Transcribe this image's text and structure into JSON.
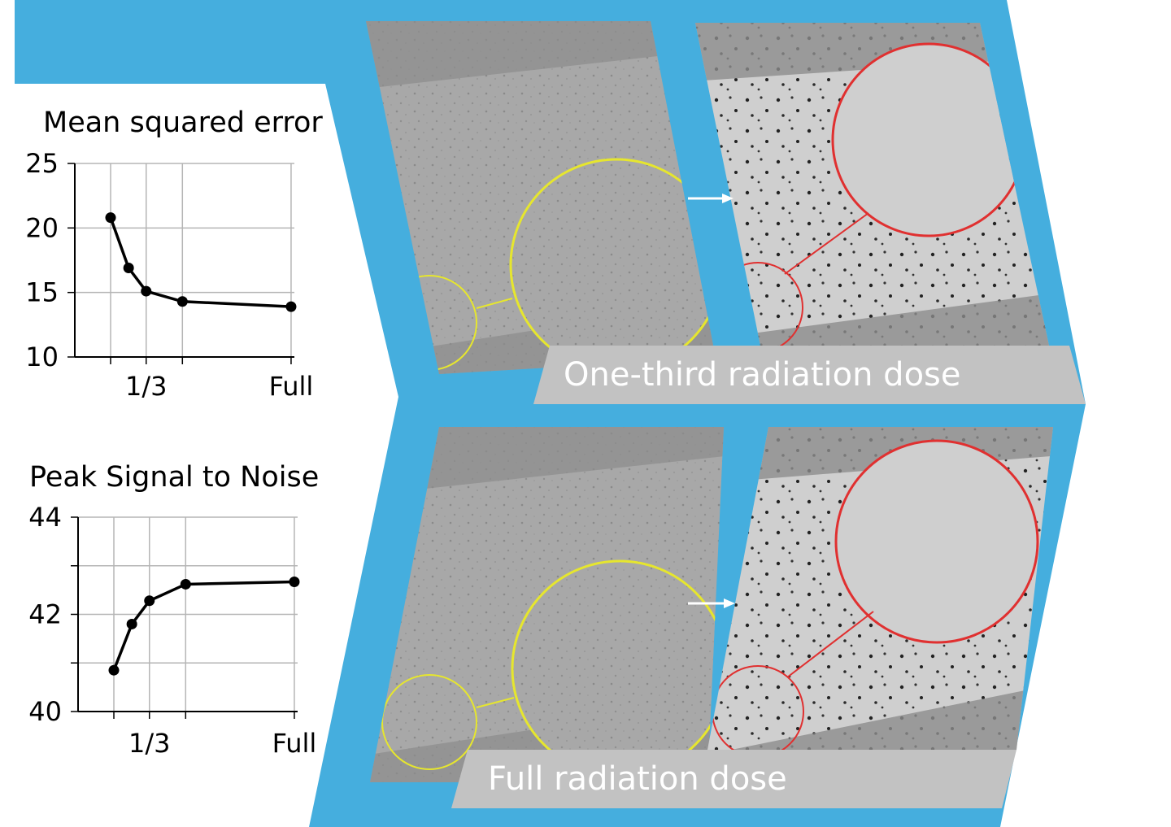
{
  "colors": {
    "background_blue": "#45aede",
    "banner_gray": "#c2c2c2",
    "micrograph_gray": "#a6a6a6",
    "noisy_zoom_circle": "#e6e62e",
    "denoised_zoom_circle": "#e03030",
    "arrow": "#ffffff"
  },
  "panels": {
    "top_label": "One-third radiation dose",
    "bottom_label": "Full radiation dose",
    "arrow_icon": "right-arrow-icon"
  },
  "chart_data": [
    {
      "type": "line",
      "title": "Mean squared error",
      "x": [
        0.2,
        0.25,
        0.333,
        0.5,
        1.0
      ],
      "values": [
        20.8,
        16.9,
        15.1,
        14.3,
        13.9
      ],
      "x_ticks": [
        {
          "value": 0.333,
          "label": "1/3"
        },
        {
          "value": 1.0,
          "label": "Full"
        }
      ],
      "y_ticks": [
        10,
        15,
        20,
        25
      ],
      "ylim": [
        10,
        25
      ],
      "grid": true,
      "legend": "none",
      "color": "#000000"
    },
    {
      "type": "line",
      "title": "Peak Signal to Noise",
      "x": [
        0.2,
        0.25,
        0.333,
        0.5,
        1.0
      ],
      "values": [
        40.85,
        41.8,
        42.28,
        42.62,
        42.67
      ],
      "x_ticks": [
        {
          "value": 0.333,
          "label": "1/3"
        },
        {
          "value": 1.0,
          "label": "Full"
        }
      ],
      "y_ticks": [
        40,
        42,
        44
      ],
      "ylim": [
        40,
        44
      ],
      "grid": true,
      "legend": "none",
      "color": "#000000"
    }
  ]
}
